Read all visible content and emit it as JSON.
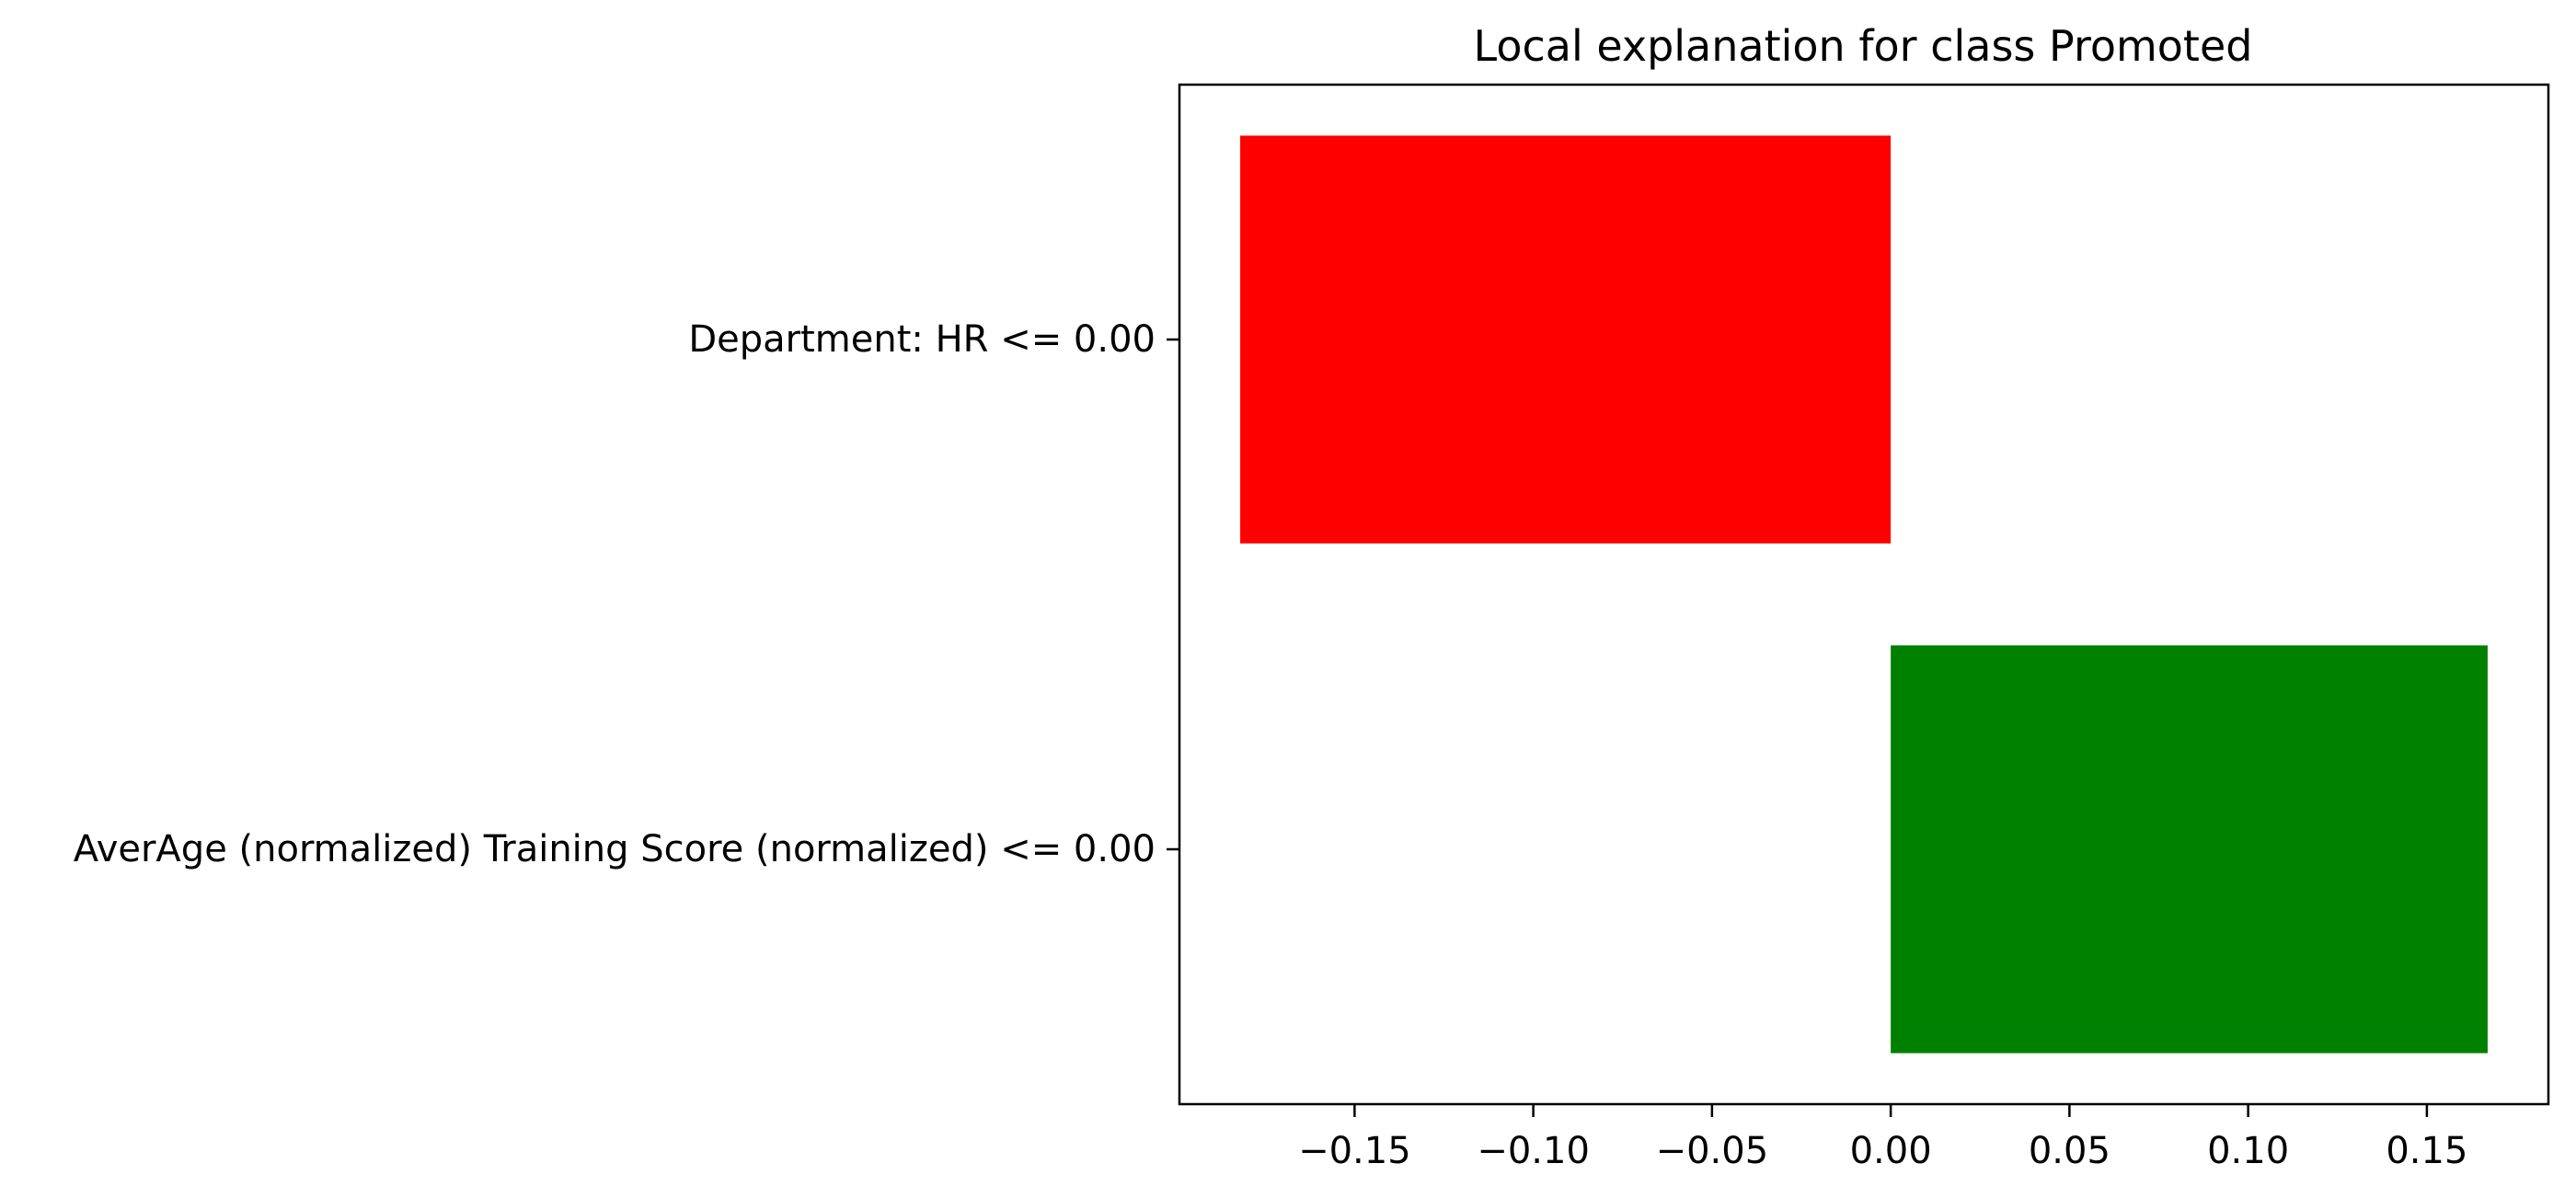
{
  "chart_data": {
    "type": "bar",
    "orientation": "horizontal",
    "title": "Local explanation for class Promoted",
    "xlabel": "",
    "ylabel": "",
    "categories": [
      "Department: HR <= 0.00",
      "AverAge (normalized) Training Score (normalized) <= 0.00"
    ],
    "values": [
      -0.182,
      0.167
    ],
    "bar_colors": [
      "#ff0000",
      "#008000"
    ],
    "xlim": [
      -0.199,
      0.184
    ],
    "xticks": [
      -0.15,
      -0.1,
      -0.05,
      0.0,
      0.05,
      0.1,
      0.15
    ],
    "xtick_labels": [
      "−0.15",
      "−0.10",
      "−0.05",
      "0.00",
      "0.05",
      "0.10",
      "0.15"
    ],
    "grid": false,
    "legend": "none"
  }
}
